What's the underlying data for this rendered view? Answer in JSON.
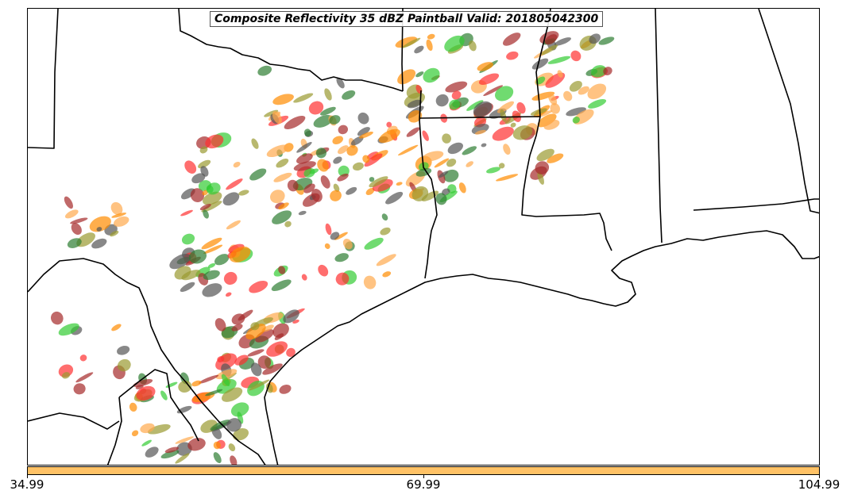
{
  "title": "Composite Reflectivity 35 dBZ Paintball Valid: 201805042300",
  "colorbar": {
    "color": "#ffc266",
    "ticks": [
      "34.99",
      "69.99",
      "104.99"
    ]
  },
  "palette": {
    "red": "#ff3030",
    "dark_red": "#a52a2a",
    "orange": "#ff8c00",
    "light_orange": "#ffa94d",
    "olive": "#9a9a30",
    "dark_green": "#2e7d32",
    "green": "#33cc33",
    "gray": "#555555"
  }
}
